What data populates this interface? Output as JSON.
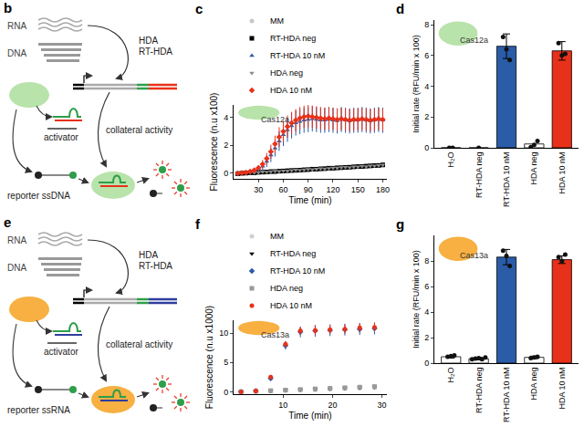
{
  "diagrams": [
    {
      "panel": "b",
      "inputs": [
        "RNA",
        "DNA"
      ],
      "methods": [
        "HDA",
        "RT-HDA"
      ],
      "activator": "activator",
      "activity": "collateral activity",
      "reporter": "reporter ssDNA"
    },
    {
      "panel": "e",
      "inputs": [
        "RNA",
        "DNA"
      ],
      "methods": [
        "HDA",
        "RT-HDA"
      ],
      "activator": "activator",
      "activity": "collateral activity",
      "reporter": "reporter ssRNA"
    }
  ],
  "chart_data": [
    {
      "panel": "c",
      "type": "scatter",
      "annotation": "Cas12a",
      "x_label": "Time (min)",
      "y_label": "Fluorescence (n.u x100)",
      "xlim": [
        0,
        185
      ],
      "xticks": [
        30,
        60,
        90,
        120,
        150,
        180
      ],
      "ylim": [
        -0.4,
        4.9
      ],
      "yticks": [
        0,
        2,
        4
      ],
      "grid": false,
      "legend": "top",
      "x": [
        5,
        10,
        15,
        20,
        25,
        30,
        35,
        40,
        45,
        50,
        55,
        60,
        65,
        70,
        75,
        80,
        85,
        90,
        95,
        100,
        105,
        110,
        115,
        120,
        125,
        130,
        135,
        140,
        145,
        150,
        155,
        160,
        165,
        170,
        175,
        180
      ],
      "series": [
        {
          "name": "MM",
          "color": "#c8c8c8",
          "marker": "circle",
          "values": [
            0.0,
            -0.02,
            0.03,
            0.02,
            0.06,
            0.05,
            0.09,
            0.1,
            0.11,
            0.14,
            0.13,
            0.17,
            0.19,
            0.18,
            0.22,
            0.24,
            0.23,
            0.27,
            0.28,
            0.31,
            0.3,
            0.34,
            0.35,
            0.37,
            0.36,
            0.4,
            0.41,
            0.44,
            0.45,
            0.46,
            0.49,
            0.5,
            0.52,
            0.54,
            0.55,
            0.58
          ]
        },
        {
          "name": "RT-HDA neg",
          "color": "#000000",
          "marker": "square",
          "values": [
            -0.03,
            0.0,
            0.01,
            0.04,
            0.03,
            0.07,
            0.08,
            0.09,
            0.12,
            0.12,
            0.15,
            0.16,
            0.18,
            0.2,
            0.21,
            0.22,
            0.25,
            0.26,
            0.29,
            0.29,
            0.32,
            0.33,
            0.36,
            0.36,
            0.39,
            0.4,
            0.42,
            0.43,
            0.46,
            0.48,
            0.48,
            0.51,
            0.53,
            0.55,
            0.56,
            0.6
          ]
        },
        {
          "name": "RT-HDA 10 nM",
          "color": "#2a5ca8",
          "marker": "triangle-up",
          "values": [
            0.0,
            0.02,
            0.05,
            0.1,
            0.18,
            0.3,
            0.5,
            0.85,
            1.3,
            1.8,
            2.3,
            2.75,
            3.1,
            3.4,
            3.6,
            3.7,
            3.8,
            3.85,
            3.9,
            3.85,
            3.8,
            3.8,
            3.85,
            3.8,
            3.75,
            3.85,
            3.8,
            3.75,
            3.8,
            3.8,
            3.85,
            3.8,
            3.75,
            3.8,
            3.85,
            3.8
          ],
          "error": [
            0,
            0,
            0.05,
            0.1,
            0.15,
            0.2,
            0.3,
            0.4,
            0.5,
            0.6,
            0.7,
            0.8,
            0.85,
            0.9,
            0.9,
            0.9,
            0.9,
            0.9,
            0.9,
            0.9,
            0.9,
            0.9,
            0.9,
            0.9,
            0.9,
            0.9,
            0.9,
            0.9,
            0.9,
            0.9,
            0.9,
            0.9,
            0.9,
            0.9,
            0.9,
            0.9
          ]
        },
        {
          "name": "HDA neg",
          "color": "#8c8c8c",
          "marker": "triangle-down",
          "values": [
            0.01,
            0.02,
            0.0,
            0.05,
            0.04,
            0.06,
            0.1,
            0.09,
            0.13,
            0.15,
            0.14,
            0.18,
            0.18,
            0.21,
            0.23,
            0.22,
            0.26,
            0.28,
            0.27,
            0.3,
            0.33,
            0.32,
            0.35,
            0.38,
            0.38,
            0.41,
            0.43,
            0.42,
            0.46,
            0.47,
            0.5,
            0.49,
            0.53,
            0.54,
            0.57,
            0.59
          ]
        },
        {
          "name": "HDA 10 nM",
          "color": "#e8311a",
          "marker": "diamond",
          "values": [
            0.0,
            0.03,
            0.06,
            0.12,
            0.22,
            0.38,
            0.65,
            1.05,
            1.55,
            2.1,
            2.6,
            3.0,
            3.35,
            3.6,
            3.8,
            3.95,
            4.05,
            4.1,
            4.05,
            4.0,
            3.95,
            3.9,
            3.95,
            3.9,
            3.85,
            3.9,
            3.85,
            3.8,
            3.85,
            3.85,
            3.9,
            3.85,
            3.8,
            3.85,
            3.9,
            3.85
          ],
          "error": [
            0,
            0,
            0.05,
            0.1,
            0.15,
            0.2,
            0.3,
            0.4,
            0.5,
            0.6,
            0.7,
            0.75,
            0.8,
            0.8,
            0.8,
            0.8,
            0.8,
            0.8,
            0.8,
            0.8,
            0.8,
            0.8,
            0.8,
            0.8,
            0.8,
            0.8,
            0.8,
            0.8,
            0.8,
            0.8,
            0.8,
            0.8,
            0.8,
            0.8,
            0.8,
            0.8
          ]
        }
      ]
    },
    {
      "panel": "d",
      "type": "bar",
      "annotation": "Cas12a",
      "y_label": "Initial rate (RFU/min x 100)",
      "categories": [
        "H₂O",
        "RT-HDA neg",
        "RT-HDA 10 nM",
        "HDA neg",
        "HDA 10 nM"
      ],
      "values": [
        0.0,
        0.0,
        6.6,
        0.25,
        6.3
      ],
      "error": [
        null,
        null,
        0.8,
        null,
        0.6
      ],
      "points": [
        [
          0.0,
          0.0
        ],
        [
          0.0
        ],
        [
          7.2,
          6.4,
          5.7
        ],
        [
          0.05,
          0.2,
          0.45
        ],
        [
          6.8,
          6.0,
          6.1
        ]
      ],
      "colors": [
        "#ffffff",
        "#ffffff",
        "#2a5ca8",
        "#ffffff",
        "#e8311a"
      ],
      "ylim": [
        0,
        8.3
      ],
      "yticks": [
        0,
        2,
        4,
        6,
        8
      ],
      "grid": false
    },
    {
      "panel": "f",
      "type": "scatter",
      "annotation": "Cas13a",
      "x_label": "Time (min)",
      "y_label": "Fluorescence (n.u x1000)",
      "xlim": [
        0,
        31
      ],
      "xticks": [
        10,
        20,
        30
      ],
      "ylim": [
        -0.4,
        12.2
      ],
      "yticks": [
        0,
        5,
        10
      ],
      "grid": false,
      "legend": "top",
      "x": [
        1.5,
        4.5,
        7.5,
        10.5,
        13.5,
        16.5,
        19.5,
        22.5,
        25.5,
        28.5
      ],
      "series": [
        {
          "name": "MM",
          "color": "#d0d0d0",
          "marker": "circle",
          "values": [
            0.0,
            0.05,
            0.1,
            0.2,
            0.3,
            0.35,
            0.45,
            0.55,
            0.6,
            0.7
          ]
        },
        {
          "name": "RT-HDA neg",
          "color": "#000000",
          "marker": "triangle-down",
          "values": [
            0.0,
            0.1,
            0.15,
            0.25,
            0.35,
            0.45,
            0.5,
            0.6,
            0.7,
            0.8
          ]
        },
        {
          "name": "RT-HDA 10 nM",
          "color": "#2a5ca8",
          "marker": "diamond",
          "values": [
            0.0,
            0.15,
            2.3,
            7.9,
            10.2,
            10.4,
            10.5,
            10.6,
            10.7,
            10.8
          ],
          "error": [
            0,
            0.05,
            0.3,
            0.7,
            0.9,
            1.0,
            1.0,
            1.0,
            1.0,
            1.0
          ]
        },
        {
          "name": "HDA neg",
          "color": "#999999",
          "marker": "square",
          "values": [
            0.02,
            0.1,
            0.2,
            0.3,
            0.4,
            0.5,
            0.6,
            0.7,
            0.8,
            0.9
          ]
        },
        {
          "name": "HDA 10 nM",
          "color": "#e8311a",
          "marker": "circle",
          "values": [
            0.0,
            0.15,
            2.5,
            8.1,
            10.4,
            10.5,
            10.6,
            10.7,
            10.9,
            11.0
          ],
          "error": [
            0,
            0.05,
            0.2,
            0.5,
            0.7,
            0.8,
            0.8,
            0.8,
            0.8,
            0.8
          ]
        }
      ]
    },
    {
      "panel": "g",
      "type": "bar",
      "annotation": "Cas13a",
      "y_label": "Initial rate (RFU/min x 100)",
      "categories": [
        "H₂O",
        "RT-HDA neg",
        "RT-HDA 10 nM",
        "HDA neg",
        "HDA 10 nM"
      ],
      "values": [
        0.5,
        0.35,
        8.3,
        0.45,
        8.1
      ],
      "error": [
        0.1,
        0.1,
        0.6,
        0.1,
        0.3
      ],
      "points": [
        [
          0.5,
          0.55,
          0.6
        ],
        [
          0.3,
          0.35,
          0.4,
          0.3,
          0.45
        ],
        [
          8.8,
          8.4,
          7.6
        ],
        [
          0.4,
          0.45,
          0.5
        ],
        [
          8.3,
          8.0,
          8.5
        ]
      ],
      "colors": [
        "#ffffff",
        "#ffffff",
        "#2a5ca8",
        "#ffffff",
        "#e8311a"
      ],
      "ylim": [
        0,
        10
      ],
      "yticks": [
        0,
        2,
        4,
        6,
        8
      ],
      "grid": false
    }
  ]
}
